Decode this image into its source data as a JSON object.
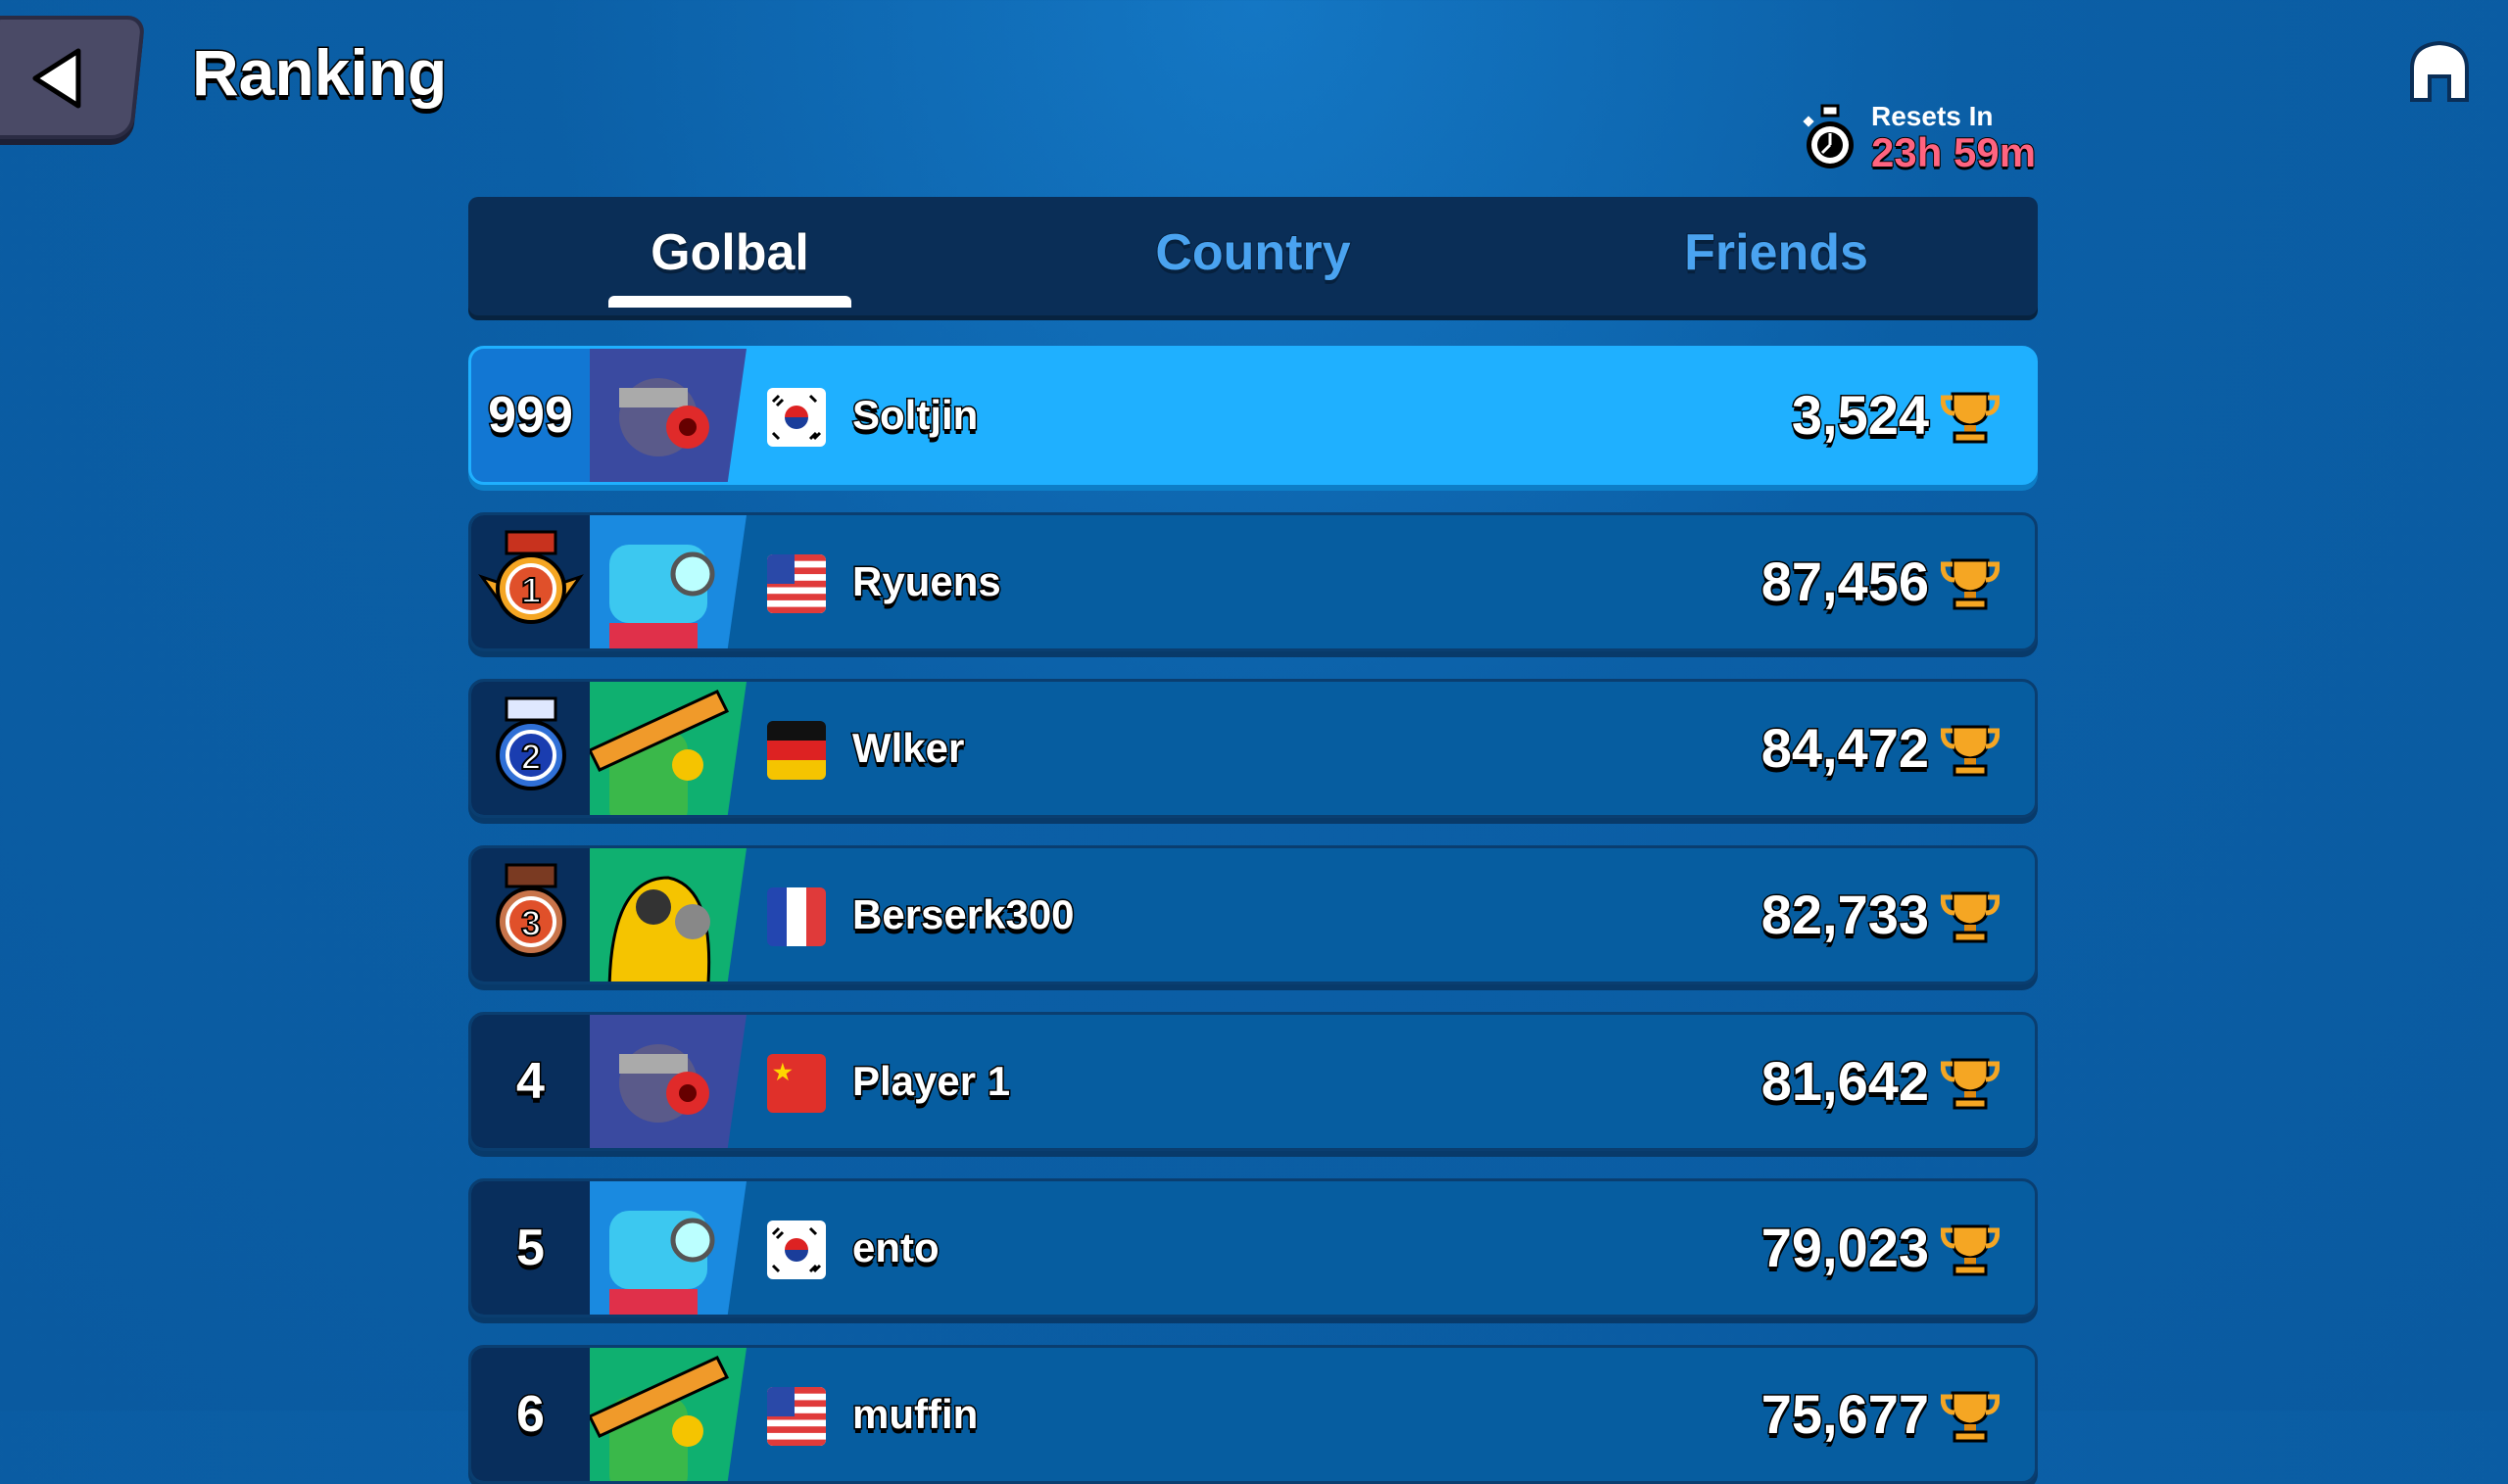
{
  "header": {
    "title": "Ranking",
    "back_icon": "back-arrow-icon",
    "home_icon": "home-icon"
  },
  "reset": {
    "label": "Resets In",
    "value": "23h 59m",
    "value_color": "#ff6480"
  },
  "tabs": [
    {
      "label": "Golbal",
      "active": true
    },
    {
      "label": "Country",
      "active": false
    },
    {
      "label": "Friends",
      "active": false
    }
  ],
  "rows": [
    {
      "rank": "999",
      "medal": null,
      "avatar": "knight-robot",
      "flag": "south-korea",
      "name": "Soltjin",
      "score": "3,524",
      "self": true
    },
    {
      "rank": "1",
      "medal": "gold",
      "avatar": "blue-robot",
      "flag": "usa",
      "name": "Ryuens",
      "score": "87,456"
    },
    {
      "rank": "2",
      "medal": "silver",
      "avatar": "cactus-sombrero",
      "flag": "germany",
      "name": "Wlker",
      "score": "84,472"
    },
    {
      "rank": "3",
      "medal": "bronze",
      "avatar": "yellow-hazmat",
      "flag": "france",
      "name": "Berserk300",
      "score": "82,733"
    },
    {
      "rank": "4",
      "medal": null,
      "avatar": "knight-robot",
      "flag": "china",
      "name": "Player 1",
      "score": "81,642"
    },
    {
      "rank": "5",
      "medal": null,
      "avatar": "blue-robot",
      "flag": "south-korea",
      "name": "ento",
      "score": "79,023"
    },
    {
      "rank": "6",
      "medal": null,
      "avatar": "cactus-sombrero",
      "flag": "usa",
      "name": "muffin",
      "score": "75,677"
    }
  ],
  "colors": {
    "accent_self_row": "#1fb0ff",
    "row": "#065da0",
    "gold": "#f5a623",
    "silver": "#2f6fd6",
    "bronze": "#c8744a"
  }
}
